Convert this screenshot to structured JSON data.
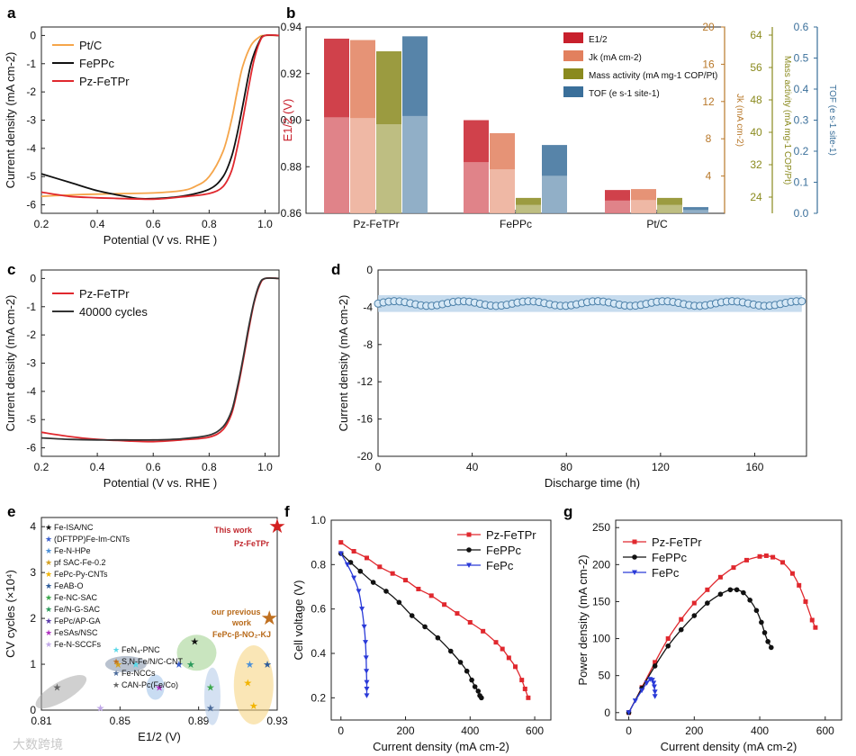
{
  "watermark": "大数跨境",
  "chart_data": [
    {
      "panel": "a",
      "type": "line",
      "xlabel": "Potential (V vs. RHE )",
      "ylabel": "Current density (mA cm-2)",
      "xlim": [
        0.2,
        1.05
      ],
      "ylim": [
        -6.3,
        0.3
      ],
      "xticks": [
        "0.2",
        "0.4",
        "0.6",
        "0.8",
        "1.0"
      ],
      "yticks": [
        "0",
        "-1",
        "-2",
        "-3",
        "-4",
        "-5",
        "-6"
      ],
      "legend_position": "top-left",
      "series": [
        {
          "name": "Pt/C",
          "color": "#f5a54a",
          "x": [
            0.2,
            0.3,
            0.4,
            0.5,
            0.6,
            0.7,
            0.75,
            0.8,
            0.85,
            0.88,
            0.9,
            0.92,
            0.95,
            0.98,
            1.0,
            1.05
          ],
          "y": [
            -5.7,
            -5.65,
            -5.62,
            -5.6,
            -5.58,
            -5.5,
            -5.35,
            -5.0,
            -4.1,
            -3.0,
            -2.0,
            -1.1,
            -0.35,
            -0.05,
            0,
            0
          ]
        },
        {
          "name": "FePPc",
          "color": "#111111",
          "x": [
            0.2,
            0.3,
            0.4,
            0.5,
            0.55,
            0.6,
            0.7,
            0.8,
            0.85,
            0.88,
            0.9,
            0.92,
            0.95,
            0.98,
            1.0,
            1.05
          ],
          "y": [
            -4.9,
            -5.2,
            -5.5,
            -5.7,
            -5.78,
            -5.78,
            -5.7,
            -5.45,
            -5.0,
            -4.3,
            -3.5,
            -2.5,
            -1.0,
            -0.2,
            0,
            0
          ]
        },
        {
          "name": "Pz-FeTPr",
          "color": "#e0282e",
          "x": [
            0.2,
            0.3,
            0.4,
            0.5,
            0.6,
            0.7,
            0.8,
            0.85,
            0.88,
            0.9,
            0.92,
            0.94,
            0.96,
            0.98,
            1.0,
            1.05
          ],
          "y": [
            -5.55,
            -5.7,
            -5.75,
            -5.78,
            -5.8,
            -5.72,
            -5.6,
            -5.35,
            -4.8,
            -4.0,
            -3.0,
            -1.9,
            -0.9,
            -0.25,
            0,
            0
          ]
        }
      ]
    },
    {
      "panel": "b",
      "type": "bar",
      "categories": [
        "Pz-FeTPr",
        "FePPc",
        "Pt/C"
      ],
      "ylabel_left": "E1/2 (V)",
      "ylabel_right": [
        "Jk (mA cm-2)",
        "Mass activity (mA mg-1 COP/Pt)",
        "TOF (e s-1 site-1)"
      ],
      "ylim": [
        0.86,
        0.94
      ],
      "yticks_left": [
        "0.86",
        "0.88",
        "0.90",
        "0.92",
        "0.94"
      ],
      "yticks_jk": [
        "4",
        "8",
        "12",
        "16",
        "20"
      ],
      "yticks_mass": [
        "24",
        "32",
        "40",
        "48",
        "56",
        "64"
      ],
      "yticks_tof": [
        "0.0",
        "0.1",
        "0.2",
        "0.3",
        "0.4",
        "0.5",
        "0.6"
      ],
      "legend_position": "top-right",
      "series": [
        {
          "name": "E1/2",
          "color": "#c8202c",
          "values": [
            0.935,
            0.9,
            0.87
          ]
        },
        {
          "name": "Jk (mA cm-2)",
          "color": "#e2805e",
          "values": [
            18.6,
            8.6,
            2.6
          ]
        },
        {
          "name": "Mass activity (mA mg-1 COP/Pt)",
          "color": "#8a8a1e",
          "values": [
            60.0,
            23.8,
            23.8
          ]
        },
        {
          "name": "TOF (e s-1 site-1)",
          "color": "#3a6f9a",
          "values": [
            0.57,
            0.22,
            0.02
          ]
        }
      ]
    },
    {
      "panel": "c",
      "type": "line",
      "xlabel": "Potential (V vs. RHE )",
      "ylabel": "Current density (mA cm-2)",
      "xlim": [
        0.2,
        1.05
      ],
      "ylim": [
        -6.3,
        0.3
      ],
      "xticks": [
        "0.2",
        "0.4",
        "0.6",
        "0.8",
        "1.0"
      ],
      "yticks": [
        "0",
        "-1",
        "-2",
        "-3",
        "-4",
        "-5",
        "-6"
      ],
      "legend_position": "top-left",
      "series": [
        {
          "name": "Pz-FeTPr",
          "color": "#e0282e",
          "x": [
            0.2,
            0.3,
            0.4,
            0.5,
            0.6,
            0.7,
            0.8,
            0.85,
            0.88,
            0.9,
            0.92,
            0.94,
            0.96,
            0.98,
            1.0,
            1.05
          ],
          "y": [
            -5.45,
            -5.6,
            -5.7,
            -5.75,
            -5.78,
            -5.72,
            -5.62,
            -5.35,
            -4.8,
            -4.0,
            -3.0,
            -1.9,
            -0.9,
            -0.25,
            0,
            0
          ]
        },
        {
          "name": "40000 cycles",
          "color": "#333333",
          "x": [
            0.2,
            0.3,
            0.4,
            0.5,
            0.6,
            0.7,
            0.8,
            0.85,
            0.88,
            0.9,
            0.92,
            0.94,
            0.96,
            0.98,
            1.0,
            1.05
          ],
          "y": [
            -5.65,
            -5.7,
            -5.72,
            -5.72,
            -5.72,
            -5.68,
            -5.55,
            -5.25,
            -4.7,
            -3.9,
            -2.9,
            -1.8,
            -0.85,
            -0.2,
            0,
            0
          ]
        }
      ]
    },
    {
      "panel": "d",
      "type": "line",
      "xlabel": "Discharge time (h)",
      "ylabel": "Current density (mA cm-2)",
      "xlim": [
        0,
        182
      ],
      "ylim": [
        -20,
        0
      ],
      "xticks": [
        "0",
        "40",
        "80",
        "120",
        "160"
      ],
      "yticks": [
        "0",
        "-4",
        "-8",
        "-12",
        "-16",
        "-20"
      ],
      "series": [
        {
          "name": "",
          "color": "#6ea3cc",
          "x_start": 0,
          "x_end": 180,
          "n_points": 80,
          "y_center": -3.6,
          "y_band": 0.9
        }
      ]
    },
    {
      "panel": "e",
      "type": "scatter",
      "xlabel": "E1/2 (V)",
      "ylabel": "CV cycles (×10⁴)",
      "xlim": [
        0.81,
        0.93
      ],
      "ylim": [
        0,
        4.2
      ],
      "xticks": [
        "0.81",
        "0.85",
        "0.89",
        "0.93"
      ],
      "yticks": [
        "0",
        "1",
        "2",
        "3",
        "4"
      ],
      "legend_position": "top-left",
      "legend_left": [
        {
          "name": "Fe-ISA/NC",
          "color": "#111111"
        },
        {
          "name": "(DFTPP)Fe-Im-CNTs",
          "color": "#3a5fcd"
        },
        {
          "name": "Fe-N-HPe",
          "color": "#4a8fd8"
        },
        {
          "name": "pf SAC-Fe-0.2",
          "color": "#d4a020"
        },
        {
          "name": "FePc-Py-CNTs",
          "color": "#f2b400"
        },
        {
          "name": "FeAB-O",
          "color": "#2c5b9a"
        },
        {
          "name": "Fe-NC-SAC",
          "color": "#3aa84a"
        },
        {
          "name": "Fe/N-G-SAC",
          "color": "#2a9a5a"
        },
        {
          "name": "FePc/AP-GA",
          "color": "#5a3aaa"
        },
        {
          "name": "FeSAs/NSC",
          "color": "#b030c0"
        },
        {
          "name": "Fe-N-SCCFs",
          "color": "#c0a8e8"
        }
      ],
      "legend_right": [
        {
          "name": "FeN₄-PNC",
          "color": "#5ad8e8"
        },
        {
          "name": "S,N-Fe/N/C-CNT",
          "color": "#c07020"
        },
        {
          "name": "Fe-NCCs",
          "color": "#4a6a9a"
        },
        {
          "name": "CAN-Pc(Fe/Co)",
          "color": "#666666"
        }
      ],
      "annotations": [
        "This work",
        "Pz-FeTPr",
        "our previous",
        "work",
        "FePc-β-NO₂-KJ"
      ],
      "points": [
        {
          "x": 0.93,
          "y": 4.0,
          "color": "#d32020"
        },
        {
          "x": 0.926,
          "y": 2.0,
          "color": "#c07020"
        },
        {
          "x": 0.888,
          "y": 1.5,
          "color": "#111111"
        },
        {
          "x": 0.88,
          "y": 1.0,
          "color": "#3a5fcd"
        },
        {
          "x": 0.886,
          "y": 1.0,
          "color": "#2a9a5a"
        },
        {
          "x": 0.916,
          "y": 1.0,
          "color": "#4a8fd8"
        },
        {
          "x": 0.925,
          "y": 1.0,
          "color": "#2c5b9a"
        },
        {
          "x": 0.849,
          "y": 1.0,
          "color": "#d4a020"
        },
        {
          "x": 0.858,
          "y": 1.0,
          "color": "#5ad8e8"
        },
        {
          "x": 0.87,
          "y": 0.5,
          "color": "#b030c0"
        },
        {
          "x": 0.896,
          "y": 0.5,
          "color": "#3aa84a"
        },
        {
          "x": 0.915,
          "y": 0.6,
          "color": "#f2b400"
        },
        {
          "x": 0.918,
          "y": 0.1,
          "color": "#f2b400"
        },
        {
          "x": 0.896,
          "y": 0.05,
          "color": "#4a6a9a"
        },
        {
          "x": 0.818,
          "y": 0.5,
          "color": "#666666"
        },
        {
          "x": 0.84,
          "y": 0.05,
          "color": "#c0a8e8"
        }
      ]
    },
    {
      "panel": "f",
      "type": "line",
      "xlabel": "Current density (mA cm-2)",
      "ylabel": "Cell voltage (V)",
      "xlim": [
        -30,
        650
      ],
      "ylim": [
        0.1,
        1.0
      ],
      "xticks": [
        "0",
        "200",
        "400",
        "600"
      ],
      "yticks": [
        "0.2",
        "0.4",
        "0.6",
        "0.8",
        "1.0"
      ],
      "legend_position": "top-right",
      "series": [
        {
          "name": "Pz-FeTPr",
          "color": "#e0282e",
          "x": [
            0,
            40,
            80,
            120,
            160,
            200,
            240,
            280,
            320,
            360,
            400,
            440,
            480,
            500,
            520,
            540,
            560,
            570,
            580
          ],
          "y": [
            0.9,
            0.86,
            0.83,
            0.79,
            0.76,
            0.73,
            0.69,
            0.66,
            0.62,
            0.58,
            0.54,
            0.5,
            0.45,
            0.42,
            0.38,
            0.34,
            0.28,
            0.24,
            0.2
          ]
        },
        {
          "name": "FePPc",
          "color": "#111111",
          "x": [
            0,
            30,
            60,
            100,
            140,
            180,
            220,
            260,
            300,
            340,
            370,
            390,
            405,
            415,
            425,
            430,
            435
          ],
          "y": [
            0.85,
            0.81,
            0.77,
            0.72,
            0.68,
            0.63,
            0.57,
            0.52,
            0.47,
            0.41,
            0.36,
            0.32,
            0.28,
            0.25,
            0.23,
            0.21,
            0.2
          ]
        },
        {
          "name": "FePc",
          "color": "#2a3ad8",
          "x": [
            0,
            20,
            40,
            55,
            65,
            72,
            76,
            78,
            79,
            80,
            80,
            80
          ],
          "y": [
            0.85,
            0.8,
            0.74,
            0.68,
            0.6,
            0.52,
            0.45,
            0.38,
            0.32,
            0.27,
            0.24,
            0.21
          ]
        }
      ]
    },
    {
      "panel": "g",
      "type": "line",
      "xlabel": "Current density (mA cm-2)",
      "ylabel": "Power density (mA cm-2)",
      "xlim": [
        -40,
        650
      ],
      "ylim": [
        -10,
        260
      ],
      "xticks": [
        "0",
        "200",
        "400",
        "600"
      ],
      "yticks": [
        "0",
        "50",
        "100",
        "150",
        "200",
        "250"
      ],
      "legend_position": "top-left",
      "series": [
        {
          "name": "Pz-FeTPr",
          "color": "#e0282e",
          "x": [
            0,
            40,
            80,
            120,
            160,
            200,
            240,
            280,
            320,
            360,
            400,
            420,
            440,
            470,
            500,
            520,
            540,
            560,
            570
          ],
          "y": [
            0,
            34,
            68,
            100,
            126,
            148,
            166,
            183,
            196,
            206,
            211,
            212,
            210,
            203,
            188,
            172,
            150,
            125,
            115
          ]
        },
        {
          "name": "FePPc",
          "color": "#111111",
          "x": [
            0,
            40,
            80,
            120,
            160,
            200,
            240,
            280,
            310,
            330,
            350,
            370,
            390,
            405,
            415,
            425,
            435
          ],
          "y": [
            0,
            33,
            63,
            90,
            112,
            131,
            148,
            160,
            166,
            166,
            162,
            152,
            138,
            122,
            108,
            96,
            88
          ]
        },
        {
          "name": "FePc",
          "color": "#2a3ad8",
          "x": [
            0,
            20,
            40,
            55,
            65,
            72,
            76,
            78,
            80,
            80
          ],
          "y": [
            0,
            16,
            30,
            40,
            45,
            44,
            40,
            35,
            28,
            22
          ]
        }
      ]
    }
  ]
}
